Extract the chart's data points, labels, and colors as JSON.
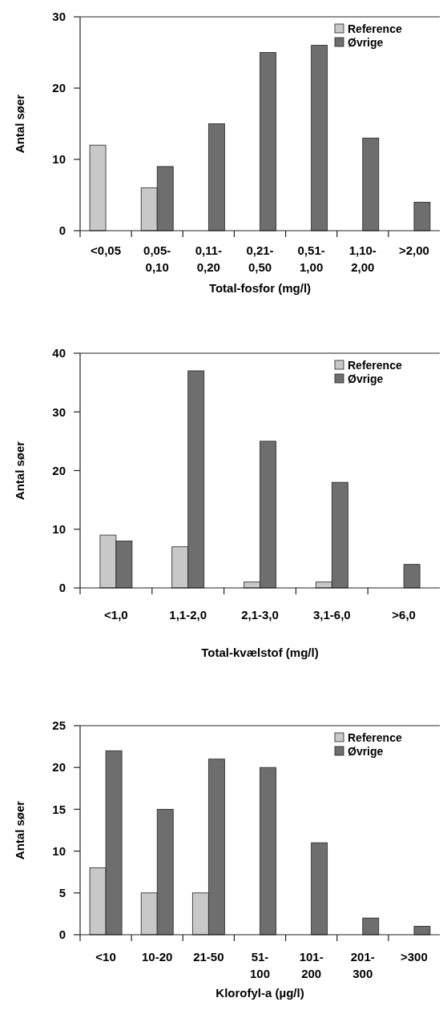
{
  "chart_data": [
    {
      "type": "bar",
      "xlabel": "Total-fosfor (mg/l)",
      "ylabel": "Antal søer",
      "categories": [
        "<0,05",
        "0,05-0,10",
        "0,11-0,20",
        "0,21-0,50",
        "0,51-1,00",
        "1,10-2,00",
        ">2,00"
      ],
      "series": [
        {
          "name": "Reference",
          "color": "#c8c8c8",
          "values": [
            12,
            6,
            null,
            null,
            null,
            null,
            null
          ]
        },
        {
          "name": "Øvrige",
          "color": "#6e6e6e",
          "values": [
            null,
            9,
            15,
            25,
            26,
            13,
            4
          ]
        }
      ],
      "ylim": [
        0,
        30
      ],
      "yticks": [
        0,
        10,
        20,
        30
      ],
      "legend": "top right"
    },
    {
      "type": "bar",
      "xlabel": "Total-kvælstof (mg/l)",
      "ylabel": "Antal søer",
      "categories": [
        "<1,0",
        "1,1-2,0",
        "2,1-3,0",
        "3,1-6,0",
        ">6,0"
      ],
      "series": [
        {
          "name": "Reference",
          "color": "#c8c8c8",
          "values": [
            9,
            7,
            1,
            1,
            null
          ]
        },
        {
          "name": "Øvrige",
          "color": "#6e6e6e",
          "values": [
            8,
            37,
            25,
            18,
            4
          ]
        }
      ],
      "ylim": [
        0,
        40
      ],
      "yticks": [
        0,
        10,
        20,
        30,
        40
      ],
      "legend": "top right"
    },
    {
      "type": "bar",
      "xlabel": "Klorofyl-a (µg/l)",
      "ylabel": "Antal søer",
      "categories": [
        "<10",
        "10-20",
        "21-50",
        "51-100",
        "101-200",
        "201-300",
        ">300"
      ],
      "series": [
        {
          "name": "Reference",
          "color": "#c8c8c8",
          "values": [
            8,
            5,
            5,
            null,
            null,
            null,
            null
          ]
        },
        {
          "name": "Øvrige",
          "color": "#6e6e6e",
          "values": [
            22,
            15,
            21,
            20,
            11,
            2,
            1
          ]
        }
      ],
      "ylim": [
        0,
        25
      ],
      "yticks": [
        0,
        5,
        10,
        15,
        20,
        25
      ],
      "legend": "top right"
    }
  ]
}
